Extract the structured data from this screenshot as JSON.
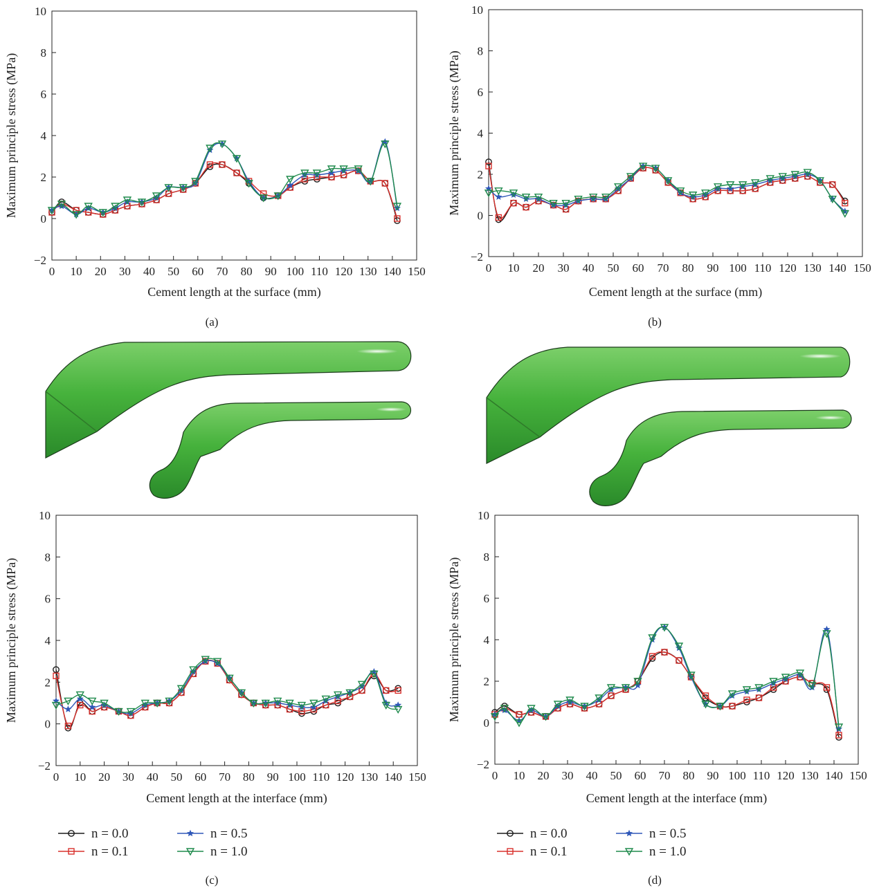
{
  "figure": {
    "panel_labels": [
      "(a)",
      "(b)",
      "(c)",
      "(d)"
    ],
    "legend": [
      {
        "label": "n = 0.0",
        "color": "#1a1a1a",
        "marker": "circle"
      },
      {
        "label": "n = 0.1",
        "color": "#d9302c",
        "marker": "square"
      },
      {
        "label": "n = 0.5",
        "color": "#2e57b8",
        "marker": "star"
      },
      {
        "label": "n = 1.0",
        "color": "#1f8a4c",
        "marker": "triangle-down"
      }
    ],
    "illustration_color": "#46b23c"
  },
  "chart_data": [
    {
      "id": "a",
      "type": "line",
      "xlabel": "Cement length at the surface (mm)",
      "ylabel": "Maximum principle stress (MPa)",
      "xlim": [
        0,
        150
      ],
      "ylim": [
        -2,
        10
      ],
      "xticks": [
        0,
        10,
        20,
        30,
        40,
        50,
        60,
        70,
        80,
        90,
        100,
        110,
        120,
        130,
        140,
        150
      ],
      "yticks": [
        -2,
        0,
        2,
        4,
        6,
        8,
        10
      ],
      "series": [
        {
          "name": "n = 0.0",
          "x": [
            0,
            4,
            10,
            15,
            21,
            26,
            31,
            37,
            43,
            48,
            54,
            59,
            65,
            70,
            76,
            81,
            87,
            93,
            98,
            104,
            109,
            115,
            120,
            126,
            131,
            137,
            142
          ],
          "y": [
            0.3,
            0.8,
            0.4,
            0.3,
            0.2,
            0.4,
            0.6,
            0.7,
            0.9,
            1.2,
            1.4,
            1.7,
            2.5,
            2.6,
            2.2,
            1.7,
            1.0,
            1.1,
            1.5,
            1.8,
            1.9,
            2.0,
            2.1,
            2.3,
            1.8,
            1.7,
            -0.1
          ]
        },
        {
          "name": "n = 0.1",
          "x": [
            0,
            4,
            10,
            15,
            21,
            26,
            31,
            37,
            43,
            48,
            54,
            59,
            65,
            70,
            76,
            81,
            87,
            93,
            98,
            104,
            109,
            115,
            120,
            126,
            131,
            137,
            142
          ],
          "y": [
            0.3,
            0.7,
            0.4,
            0.3,
            0.2,
            0.4,
            0.6,
            0.7,
            0.9,
            1.2,
            1.4,
            1.7,
            2.6,
            2.6,
            2.2,
            1.8,
            1.2,
            1.1,
            1.5,
            1.9,
            2.0,
            2.0,
            2.1,
            2.3,
            1.8,
            1.7,
            0.0
          ]
        },
        {
          "name": "n = 0.5",
          "x": [
            0,
            4,
            10,
            15,
            21,
            26,
            31,
            37,
            43,
            48,
            54,
            59,
            65,
            70,
            76,
            81,
            87,
            93,
            98,
            104,
            109,
            115,
            120,
            126,
            131,
            137,
            142
          ],
          "y": [
            0.4,
            0.6,
            0.2,
            0.5,
            0.3,
            0.5,
            0.8,
            0.8,
            1.0,
            1.5,
            1.5,
            1.7,
            3.3,
            3.6,
            2.9,
            1.8,
            1.0,
            1.1,
            1.6,
            2.1,
            2.1,
            2.2,
            2.3,
            2.3,
            1.8,
            3.7,
            0.5
          ]
        },
        {
          "name": "n = 1.0",
          "x": [
            0,
            4,
            10,
            15,
            21,
            26,
            31,
            37,
            43,
            48,
            54,
            59,
            65,
            70,
            76,
            81,
            87,
            93,
            98,
            104,
            109,
            115,
            120,
            126,
            131,
            137,
            142
          ],
          "y": [
            0.4,
            0.7,
            0.2,
            0.6,
            0.3,
            0.6,
            0.9,
            0.8,
            1.1,
            1.5,
            1.5,
            1.8,
            3.4,
            3.6,
            2.9,
            1.7,
            1.0,
            1.1,
            1.9,
            2.2,
            2.2,
            2.4,
            2.4,
            2.4,
            1.8,
            3.6,
            0.6
          ]
        }
      ]
    },
    {
      "id": "b",
      "type": "line",
      "xlabel": "Cement length at the surface (mm)",
      "ylabel": "Maximum principle stress (MPa)",
      "xlim": [
        0,
        150
      ],
      "ylim": [
        -2,
        10
      ],
      "xticks": [
        0,
        10,
        20,
        30,
        40,
        50,
        60,
        70,
        80,
        90,
        100,
        110,
        120,
        130,
        140,
        150
      ],
      "yticks": [
        -2,
        0,
        2,
        4,
        6,
        8,
        10
      ],
      "series": [
        {
          "name": "n = 0.0",
          "x": [
            0,
            4,
            10,
            15,
            20,
            26,
            31,
            36,
            42,
            47,
            52,
            57,
            62,
            67,
            72,
            77,
            82,
            87,
            92,
            97,
            102,
            107,
            113,
            118,
            123,
            128,
            133,
            138,
            143
          ],
          "y": [
            2.6,
            -0.2,
            0.6,
            0.4,
            0.7,
            0.5,
            0.3,
            0.7,
            0.8,
            0.8,
            1.2,
            1.8,
            2.3,
            2.2,
            1.6,
            1.1,
            0.8,
            0.9,
            1.2,
            1.2,
            1.2,
            1.3,
            1.6,
            1.7,
            1.8,
            1.9,
            1.6,
            1.5,
            0.7
          ]
        },
        {
          "name": "n = 0.1",
          "x": [
            0,
            4,
            10,
            15,
            20,
            26,
            31,
            36,
            42,
            47,
            52,
            57,
            62,
            67,
            72,
            77,
            82,
            87,
            92,
            97,
            102,
            107,
            113,
            118,
            123,
            128,
            133,
            138,
            143
          ],
          "y": [
            2.4,
            -0.1,
            0.6,
            0.4,
            0.7,
            0.5,
            0.3,
            0.7,
            0.8,
            0.8,
            1.2,
            1.8,
            2.3,
            2.2,
            1.6,
            1.1,
            0.8,
            0.9,
            1.2,
            1.2,
            1.2,
            1.3,
            1.6,
            1.7,
            1.8,
            1.9,
            1.6,
            1.5,
            0.6
          ]
        },
        {
          "name": "n = 0.5",
          "x": [
            0,
            4,
            10,
            15,
            20,
            26,
            31,
            36,
            42,
            47,
            52,
            57,
            62,
            67,
            72,
            77,
            82,
            87,
            92,
            97,
            102,
            107,
            113,
            118,
            123,
            128,
            133,
            138,
            143
          ],
          "y": [
            1.3,
            0.9,
            1.0,
            0.8,
            0.8,
            0.5,
            0.5,
            0.7,
            0.8,
            0.8,
            1.3,
            1.8,
            2.4,
            2.3,
            1.7,
            1.1,
            0.9,
            1.0,
            1.3,
            1.3,
            1.4,
            1.5,
            1.7,
            1.8,
            1.9,
            2.0,
            1.7,
            0.8,
            0.2
          ]
        },
        {
          "name": "n = 1.0",
          "x": [
            0,
            4,
            10,
            15,
            20,
            26,
            31,
            36,
            42,
            47,
            52,
            57,
            62,
            67,
            72,
            77,
            82,
            87,
            92,
            97,
            102,
            107,
            113,
            118,
            123,
            128,
            133,
            138,
            143
          ],
          "y": [
            1.1,
            1.2,
            1.1,
            0.9,
            0.9,
            0.6,
            0.6,
            0.8,
            0.9,
            0.9,
            1.4,
            1.9,
            2.4,
            2.3,
            1.7,
            1.2,
            1.0,
            1.1,
            1.4,
            1.5,
            1.5,
            1.6,
            1.8,
            1.9,
            2.0,
            2.1,
            1.7,
            0.8,
            0.1
          ]
        }
      ]
    },
    {
      "id": "c",
      "type": "line",
      "xlabel": "Cement length at the interface (mm)",
      "ylabel": "Maximum principle stress (MPa)",
      "xlim": [
        0,
        150
      ],
      "ylim": [
        -2,
        10
      ],
      "xticks": [
        0,
        10,
        20,
        30,
        40,
        50,
        60,
        70,
        80,
        90,
        100,
        110,
        120,
        130,
        140,
        150
      ],
      "yticks": [
        -2,
        0,
        2,
        4,
        6,
        8,
        10
      ],
      "series": [
        {
          "name": "n = 0.0",
          "x": [
            0,
            5,
            10,
            15,
            20,
            26,
            31,
            37,
            42,
            47,
            52,
            57,
            62,
            67,
            72,
            77,
            82,
            87,
            92,
            97,
            102,
            107,
            112,
            117,
            122,
            127,
            132,
            137,
            142
          ],
          "y": [
            2.6,
            -0.2,
            1.0,
            0.6,
            0.8,
            0.6,
            0.4,
            0.8,
            1.0,
            1.0,
            1.5,
            2.4,
            3.0,
            2.9,
            2.1,
            1.4,
            1.0,
            0.9,
            0.9,
            0.7,
            0.5,
            0.6,
            0.9,
            1.0,
            1.3,
            1.6,
            2.3,
            1.6,
            1.7
          ]
        },
        {
          "name": "n = 0.1",
          "x": [
            0,
            5,
            10,
            15,
            20,
            26,
            31,
            37,
            42,
            47,
            52,
            57,
            62,
            67,
            72,
            77,
            82,
            87,
            92,
            97,
            102,
            107,
            112,
            117,
            122,
            127,
            132,
            137,
            142
          ],
          "y": [
            2.3,
            -0.1,
            0.9,
            0.6,
            0.8,
            0.6,
            0.4,
            0.8,
            1.0,
            1.0,
            1.5,
            2.4,
            3.0,
            2.9,
            2.1,
            1.4,
            1.0,
            0.9,
            0.9,
            0.7,
            0.6,
            0.7,
            0.9,
            1.1,
            1.3,
            1.6,
            2.4,
            1.6,
            1.6
          ]
        },
        {
          "name": "n = 0.5",
          "x": [
            0,
            5,
            10,
            15,
            20,
            26,
            31,
            37,
            42,
            47,
            52,
            57,
            62,
            67,
            72,
            77,
            82,
            87,
            92,
            97,
            102,
            107,
            112,
            117,
            122,
            127,
            132,
            137,
            142
          ],
          "y": [
            1.1,
            0.7,
            1.2,
            0.8,
            0.9,
            0.6,
            0.5,
            0.9,
            1.0,
            1.1,
            1.6,
            2.5,
            3.0,
            2.9,
            2.2,
            1.5,
            1.0,
            1.0,
            1.0,
            0.9,
            0.8,
            0.8,
            1.1,
            1.3,
            1.5,
            1.8,
            2.5,
            1.0,
            0.9
          ]
        },
        {
          "name": "n = 1.0",
          "x": [
            0,
            5,
            10,
            15,
            20,
            26,
            31,
            37,
            42,
            47,
            52,
            57,
            62,
            67,
            72,
            77,
            82,
            87,
            92,
            97,
            102,
            107,
            112,
            117,
            122,
            127,
            132,
            137,
            142
          ],
          "y": [
            0.9,
            1.1,
            1.4,
            1.1,
            1.0,
            0.6,
            0.6,
            1.0,
            1.0,
            1.1,
            1.7,
            2.6,
            3.1,
            3.0,
            2.2,
            1.5,
            1.0,
            1.0,
            1.1,
            1.0,
            0.9,
            1.0,
            1.2,
            1.4,
            1.5,
            1.9,
            2.4,
            0.9,
            0.7
          ]
        }
      ]
    },
    {
      "id": "d",
      "type": "line",
      "xlabel": "Cement length at the interface (mm)",
      "ylabel": "Maximum principle stress (MPa)",
      "xlim": [
        0,
        150
      ],
      "ylim": [
        -2,
        10
      ],
      "xticks": [
        0,
        10,
        20,
        30,
        40,
        50,
        60,
        70,
        80,
        90,
        100,
        110,
        120,
        130,
        140,
        150
      ],
      "yticks": [
        -2,
        0,
        2,
        4,
        6,
        8,
        10
      ],
      "series": [
        {
          "name": "n = 0.0",
          "x": [
            0,
            4,
            10,
            15,
            21,
            26,
            31,
            37,
            43,
            48,
            54,
            59,
            65,
            70,
            76,
            81,
            87,
            93,
            98,
            104,
            109,
            115,
            120,
            126,
            131,
            137,
            142
          ],
          "y": [
            0.5,
            0.8,
            0.4,
            0.5,
            0.3,
            0.7,
            0.9,
            0.7,
            0.9,
            1.3,
            1.6,
            2.0,
            3.1,
            3.4,
            3.0,
            2.2,
            1.2,
            0.8,
            0.8,
            1.0,
            1.2,
            1.6,
            2.0,
            2.2,
            1.9,
            1.6,
            -0.7
          ]
        },
        {
          "name": "n = 0.1",
          "x": [
            0,
            4,
            10,
            15,
            21,
            26,
            31,
            37,
            43,
            48,
            54,
            59,
            65,
            70,
            76,
            81,
            87,
            93,
            98,
            104,
            109,
            115,
            120,
            126,
            131,
            137,
            142
          ],
          "y": [
            0.4,
            0.7,
            0.4,
            0.5,
            0.3,
            0.7,
            0.9,
            0.7,
            0.9,
            1.3,
            1.6,
            2.0,
            3.2,
            3.4,
            3.0,
            2.2,
            1.3,
            0.8,
            0.8,
            1.1,
            1.2,
            1.7,
            2.0,
            2.2,
            1.9,
            1.7,
            -0.6
          ]
        },
        {
          "name": "n = 0.5",
          "x": [
            0,
            4,
            10,
            15,
            21,
            26,
            31,
            37,
            43,
            48,
            54,
            59,
            65,
            70,
            76,
            81,
            87,
            93,
            98,
            104,
            109,
            115,
            120,
            126,
            131,
            137,
            142
          ],
          "y": [
            0.4,
            0.6,
            0.1,
            0.6,
            0.3,
            0.8,
            1.0,
            0.8,
            1.1,
            1.6,
            1.7,
            1.8,
            4.0,
            4.6,
            3.6,
            2.2,
            0.9,
            0.8,
            1.3,
            1.5,
            1.6,
            1.9,
            2.1,
            2.3,
            1.7,
            4.5,
            -0.3
          ]
        },
        {
          "name": "n = 1.0",
          "x": [
            0,
            4,
            10,
            15,
            21,
            26,
            31,
            37,
            43,
            48,
            54,
            59,
            65,
            70,
            76,
            81,
            87,
            93,
            98,
            104,
            109,
            115,
            120,
            126,
            131,
            137,
            142
          ],
          "y": [
            0.3,
            0.7,
            0.0,
            0.7,
            0.3,
            0.9,
            1.1,
            0.8,
            1.2,
            1.7,
            1.7,
            2.0,
            4.1,
            4.6,
            3.7,
            2.3,
            0.9,
            0.8,
            1.4,
            1.6,
            1.7,
            2.0,
            2.2,
            2.4,
            1.8,
            4.3,
            -0.2
          ]
        }
      ]
    }
  ]
}
